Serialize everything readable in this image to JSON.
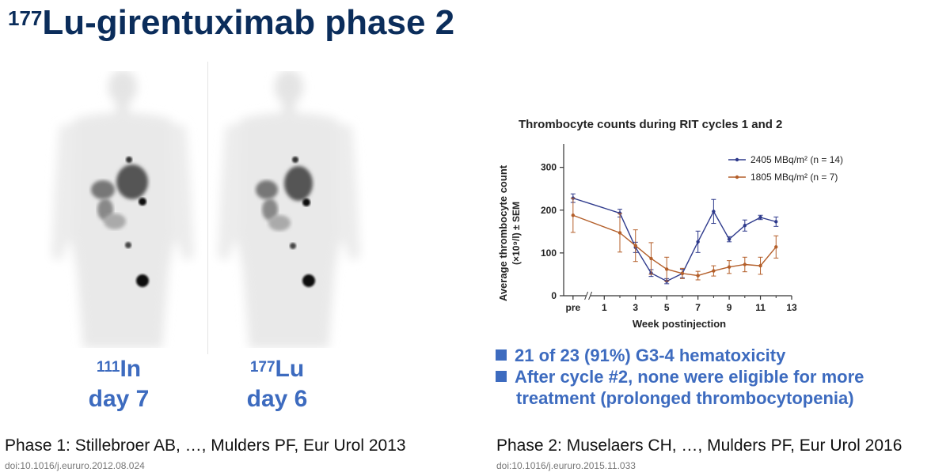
{
  "slide": {
    "title_sup": "177",
    "title_main": "Lu-girentuximab phase 2"
  },
  "scans": [
    {
      "isotope_sup": "111",
      "isotope": "In",
      "day": "day 7"
    },
    {
      "isotope_sup": "177",
      "isotope": "Lu",
      "day": "day 6"
    }
  ],
  "bullets": [
    {
      "line1": "21 of 23 (91%) G3-4 hematoxicity",
      "line2": ""
    },
    {
      "line1": "After cycle #2, none were eligible for more",
      "line2": "treatment (prolonged thrombocytopenia)"
    }
  ],
  "references": {
    "phase1": "Phase 1: Stillebroer AB, …, Mulders PF, Eur Urol 2013",
    "phase1_doi": "doi:10.1016/j.eururo.2012.08.024",
    "phase2": "Phase 2: Muselaers CH, …, Mulders PF, Eur Urol 2016",
    "phase2_doi": "doi:10.1016/j.eururo.2015.11.033"
  },
  "chart_data": {
    "type": "line",
    "title": "Thrombocyte counts during RIT cycles 1 and 2",
    "xlabel": "Week postinjection",
    "ylabel_line1": "Average thrombocyte count",
    "ylabel_line2": "(×10⁹/l) ± SEM",
    "x_ticks": [
      "pre",
      "1",
      "3",
      "5",
      "7",
      "9",
      "11",
      "13"
    ],
    "y_ticks": [
      0,
      100,
      200,
      300
    ],
    "ylim": [
      0,
      340
    ],
    "xlim": [
      -1.6,
      13
    ],
    "legend_position": "top-right",
    "grid": false,
    "series": [
      {
        "name": "2405 MBq/m² (n = 14)",
        "color": "#2e3a8c",
        "x": [
          -1,
          2,
          3,
          4,
          5,
          6,
          7,
          8,
          9,
          10,
          11,
          12
        ],
        "y": [
          228,
          193,
          113,
          53,
          34,
          52,
          126,
          197,
          132,
          164,
          183,
          173
        ],
        "err": [
          10,
          9,
          12,
          8,
          6,
          10,
          25,
          28,
          6,
          13,
          5,
          11
        ]
      },
      {
        "name": "1805 MBq/m² (n = 7)",
        "color": "#b45f2a",
        "x": [
          -1,
          2,
          3,
          4,
          5,
          6,
          7,
          8,
          9,
          10,
          11,
          12
        ],
        "y": [
          188,
          147,
          117,
          87,
          62,
          52,
          47,
          58,
          67,
          73,
          70,
          114
        ],
        "err": [
          40,
          45,
          37,
          37,
          28,
          12,
          10,
          12,
          15,
          17,
          20,
          26
        ]
      }
    ]
  }
}
